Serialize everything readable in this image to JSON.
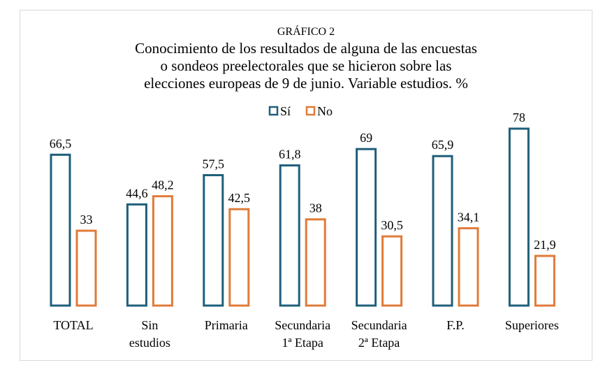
{
  "chart_data": {
    "type": "bar",
    "label": "GRÁFICO 2",
    "title_lines": [
      "Conocimiento de los resultados de alguna de las encuestas",
      "o sondeos preelectorales que se hicieron sobre las",
      "elecciones europeas de 9 de junio. Variable estudios. %"
    ],
    "categories": [
      [
        "TOTAL"
      ],
      [
        "Sin",
        "estudios"
      ],
      [
        "Primaria"
      ],
      [
        "Secundaria",
        "1ª Etapa"
      ],
      [
        "Secundaria",
        "2ª Etapa"
      ],
      [
        "F.P."
      ],
      [
        "Superiores"
      ]
    ],
    "series": [
      {
        "name": "Sí",
        "color": "#1f5f7a",
        "values": [
          66.5,
          44.6,
          57.5,
          61.8,
          69,
          65.9,
          78
        ],
        "labels": [
          "66,5",
          "44,6",
          "57,5",
          "61,8",
          "69",
          "65,9",
          "78"
        ]
      },
      {
        "name": "No",
        "color": "#e07b39",
        "values": [
          33,
          48.2,
          42.5,
          38,
          30.5,
          34.1,
          21.9
        ],
        "labels": [
          "33",
          "48,2",
          "42,5",
          "38",
          "30,5",
          "34,1",
          "21,9"
        ]
      }
    ],
    "ylim": [
      0,
      85
    ],
    "legend": "top-center",
    "grid": false
  }
}
